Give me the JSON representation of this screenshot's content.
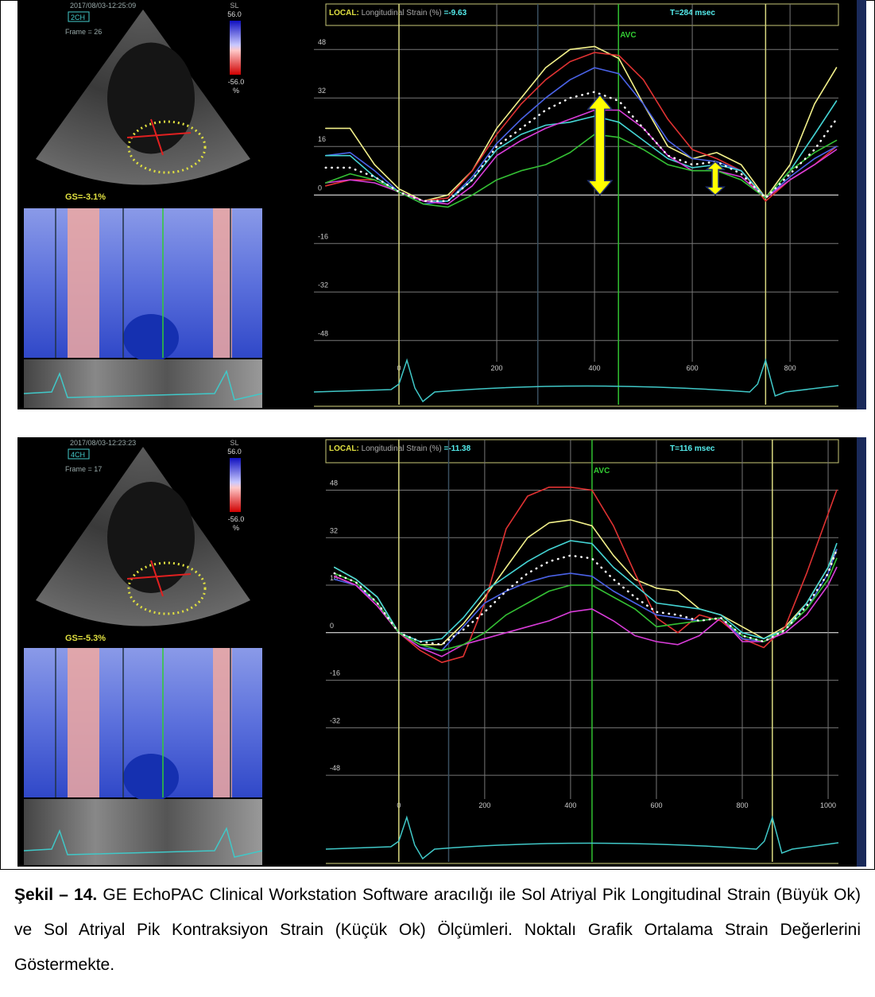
{
  "echo": [
    {
      "date": "2017/08/03-12:25:09",
      "view": "2CH",
      "frame": "Frame = 26",
      "scale_label": "SL",
      "scale_max": "56.0",
      "scale_min": "-56.0",
      "scale_unit": "%",
      "gs": "GS=-3.1%"
    },
    {
      "date": "2017/08/03-12:23:23",
      "view": "4CH",
      "frame": "Frame = 17",
      "scale_label": "SL",
      "scale_max": "56.0",
      "scale_min": "-56.0",
      "scale_unit": "%",
      "gs": "GS=-5.3%"
    }
  ],
  "chart_data": [
    {
      "type": "line",
      "title_prefix": "LOCAL:",
      "title": "Longitudinal Strain (%)",
      "readout": "=-9.63",
      "time": "T=284 msec",
      "avc_label": "AVC",
      "avc": 449,
      "cursor": 284,
      "cycle_start": 0,
      "cycle_end": 750,
      "x": [
        -150,
        -100,
        -50,
        0,
        50,
        100,
        150,
        200,
        250,
        300,
        350,
        400,
        450,
        500,
        550,
        600,
        650,
        700,
        750,
        800,
        850,
        895
      ],
      "xlim": [
        -174,
        899
      ],
      "ylim": [
        -55,
        63
      ],
      "xticks": [
        0,
        200,
        400,
        600,
        800
      ],
      "yticks": [
        -48,
        -32,
        -16,
        0,
        16,
        32,
        48
      ],
      "grid": true,
      "series": [
        {
          "color": "#f2f08a",
          "values": [
            22,
            22,
            10,
            2,
            -2,
            0,
            8,
            22,
            32,
            42,
            48,
            49,
            45,
            30,
            16,
            12,
            14,
            10,
            -1,
            10,
            30,
            42
          ]
        },
        {
          "color": "#e03232",
          "values": [
            3,
            5,
            5,
            1,
            -2,
            -1,
            8,
            20,
            30,
            38,
            44,
            47,
            46,
            38,
            25,
            15,
            12,
            8,
            -2,
            5,
            10,
            16
          ]
        },
        {
          "color": "#4a62e6",
          "values": [
            13,
            14,
            8,
            1,
            -3,
            -2,
            6,
            17,
            25,
            32,
            38,
            42,
            40,
            30,
            18,
            12,
            11,
            8,
            -1,
            6,
            12,
            16
          ]
        },
        {
          "color": "#44d4d4",
          "values": [
            13,
            13,
            6,
            1,
            -2,
            -2,
            5,
            15,
            20,
            23,
            24,
            26,
            24,
            18,
            12,
            9,
            10,
            8,
            -1,
            8,
            20,
            31
          ]
        },
        {
          "color": "#d83cd8",
          "values": [
            4,
            5,
            4,
            1,
            -2,
            -3,
            3,
            13,
            18,
            22,
            25,
            28,
            28,
            22,
            13,
            8,
            8,
            6,
            -1,
            5,
            10,
            15
          ]
        },
        {
          "color": "#34c034",
          "values": [
            4,
            7,
            5,
            1,
            -3,
            -4,
            0,
            5,
            8,
            10,
            14,
            20,
            19,
            15,
            10,
            8,
            8,
            5,
            -1,
            8,
            14,
            18
          ]
        },
        {
          "color": "#ffffff",
          "style": "dotted",
          "values": [
            9,
            9,
            6,
            1,
            -2,
            -2,
            5,
            16,
            22,
            28,
            32,
            34,
            31,
            22,
            13,
            10,
            11,
            7,
            -1,
            7,
            15,
            25
          ]
        }
      ],
      "arrows": [
        {
          "x": 411,
          "from": 0,
          "to": 33
        },
        {
          "x": 647,
          "from": 0,
          "to": 11
        }
      ]
    },
    {
      "type": "line",
      "title_prefix": "LOCAL:",
      "title": "Longitudinal Strain (%)",
      "readout": "=-11.38",
      "time": "T=116 msec",
      "avc_label": "AVC",
      "avc": 450,
      "cursor": 116,
      "cycle_start": 0,
      "cycle_end": 870,
      "x": [
        -150,
        -100,
        -50,
        0,
        50,
        100,
        150,
        200,
        250,
        300,
        350,
        400,
        450,
        500,
        550,
        600,
        650,
        700,
        750,
        800,
        850,
        900,
        950,
        1000,
        1020
      ],
      "xlim": [
        -170,
        1024
      ],
      "ylim": [
        -56,
        65
      ],
      "xticks": [
        0,
        200,
        400,
        600,
        800,
        1000
      ],
      "yticks": [
        -48,
        -32,
        -16,
        0,
        16,
        32,
        48
      ],
      "grid": true,
      "series": [
        {
          "color": "#f2f08a",
          "values": [
            22,
            18,
            12,
            0,
            -4,
            -4,
            3,
            12,
            22,
            32,
            37,
            38,
            36,
            26,
            18,
            15,
            14,
            8,
            6,
            2,
            -2,
            2,
            10,
            22,
            28
          ]
        },
        {
          "color": "#e03232",
          "values": [
            19,
            16,
            9,
            0,
            -6,
            -10,
            -8,
            10,
            35,
            46,
            49,
            49,
            48,
            36,
            20,
            5,
            0,
            6,
            4,
            -2,
            -5,
            2,
            20,
            40,
            48
          ]
        },
        {
          "color": "#44d4d4",
          "values": [
            22,
            18,
            12,
            0,
            -3,
            -2,
            5,
            14,
            19,
            24,
            28,
            31,
            30,
            22,
            16,
            10,
            9,
            8,
            6,
            0,
            -2,
            1,
            10,
            22,
            30
          ]
        },
        {
          "color": "#4a62e6",
          "values": [
            18,
            16,
            10,
            0,
            -5,
            -6,
            2,
            10,
            14,
            17,
            19,
            20,
            19,
            14,
            10,
            6,
            5,
            4,
            5,
            -2,
            -3,
            1,
            8,
            20,
            28
          ]
        },
        {
          "color": "#d83cd8",
          "values": [
            19,
            16,
            9,
            0,
            -5,
            -8,
            -4,
            -2,
            0,
            2,
            4,
            7,
            8,
            4,
            -1,
            -3,
            -4,
            -1,
            5,
            -3,
            -3,
            0,
            6,
            16,
            22
          ]
        },
        {
          "color": "#34c034",
          "values": [
            20,
            17,
            10,
            0,
            -4,
            -6,
            -4,
            0,
            6,
            10,
            14,
            16,
            16,
            12,
            8,
            2,
            3,
            4,
            5,
            -1,
            -3,
            1,
            8,
            18,
            25
          ]
        },
        {
          "color": "#ffffff",
          "style": "dotted",
          "values": [
            20,
            17,
            10,
            0,
            -3,
            -4,
            1,
            7,
            14,
            20,
            24,
            26,
            25,
            18,
            12,
            7,
            6,
            4,
            5,
            -1,
            -3,
            1,
            9,
            20,
            28
          ]
        }
      ]
    }
  ],
  "caption": {
    "label": "Şekil – 14.",
    "text": "GE EchoPAC Clinical Workstation Software aracılığı ile Sol Atriyal Pik Longitudinal Strain (Büyük Ok) ve Sol Atriyal Pik Kontraksiyon Strain (Küçük Ok) Ölçümleri. Noktalı Grafik Ortalama Strain Değerlerini Göstermekte."
  }
}
